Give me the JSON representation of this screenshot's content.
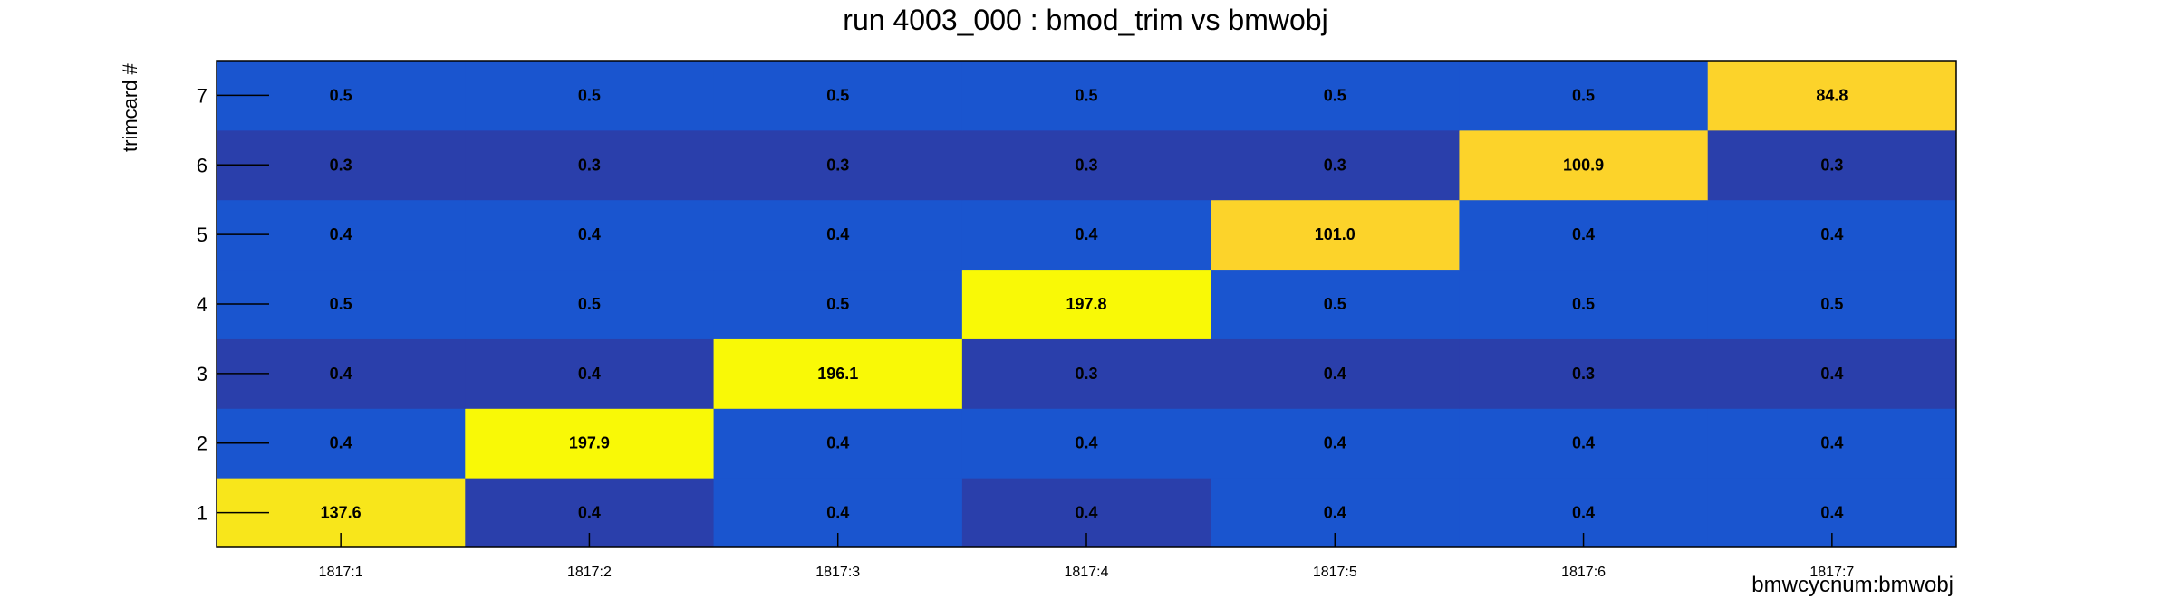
{
  "chart_data": {
    "type": "heatmap",
    "title": "run 4003_000 : bmod_trim vs bmwobj",
    "xlabel": "bmwcycnum:bmwobj",
    "ylabel": "trimcard #",
    "x_categories": [
      "1817:1",
      "1817:2",
      "1817:3",
      "1817:4",
      "1817:5",
      "1817:6",
      "1817:7"
    ],
    "y_categories": [
      "1",
      "2",
      "3",
      "4",
      "5",
      "6",
      "7"
    ],
    "values": [
      [
        137.6,
        0.4,
        0.4,
        0.4,
        0.4,
        0.4,
        0.4
      ],
      [
        0.4,
        197.9,
        0.4,
        0.4,
        0.4,
        0.4,
        0.4
      ],
      [
        0.4,
        0.4,
        196.1,
        0.3,
        0.4,
        0.3,
        0.4
      ],
      [
        0.5,
        0.5,
        0.5,
        197.8,
        0.5,
        0.5,
        0.5
      ],
      [
        0.4,
        0.4,
        0.4,
        0.4,
        101.0,
        0.4,
        0.4
      ],
      [
        0.3,
        0.3,
        0.3,
        0.3,
        0.3,
        100.9,
        0.3
      ],
      [
        0.5,
        0.5,
        0.5,
        0.5,
        0.5,
        0.5,
        84.8
      ]
    ],
    "value_labels": [
      [
        "137.6",
        "0.4",
        "0.4",
        "0.4",
        "0.4",
        "0.4",
        "0.4"
      ],
      [
        "0.4",
        "197.9",
        "0.4",
        "0.4",
        "0.4",
        "0.4",
        "0.4"
      ],
      [
        "0.4",
        "0.4",
        "196.1",
        "0.3",
        "0.4",
        "0.3",
        "0.4"
      ],
      [
        "0.5",
        "0.5",
        "0.5",
        "197.8",
        "0.5",
        "0.5",
        "0.5"
      ],
      [
        "0.4",
        "0.4",
        "0.4",
        "0.4",
        "101.0",
        "0.4",
        "0.4"
      ],
      [
        "0.3",
        "0.3",
        "0.3",
        "0.3",
        "0.3",
        "100.9",
        "0.3"
      ],
      [
        "0.5",
        "0.5",
        "0.5",
        "0.5",
        "0.5",
        "0.5",
        "84.8"
      ]
    ],
    "cell_colors": [
      [
        "#f8e61b",
        "#2a3fab",
        "#1a55cf",
        "#2a3fab",
        "#1a55cf",
        "#1a55cf",
        "#1a55cf"
      ],
      [
        "#1a55cf",
        "#f9f906",
        "#1a55cf",
        "#1a55cf",
        "#1a55cf",
        "#1a55cf",
        "#1a55cf"
      ],
      [
        "#2a3fab",
        "#2a3fab",
        "#f9f906",
        "#2a3fab",
        "#2a3fab",
        "#2a3fab",
        "#2a3fab"
      ],
      [
        "#1a55cf",
        "#1a55cf",
        "#1a55cf",
        "#f9f906",
        "#1a55cf",
        "#1a55cf",
        "#1a55cf"
      ],
      [
        "#1a55cf",
        "#1a55cf",
        "#1a55cf",
        "#1a55cf",
        "#fcd32a",
        "#1a55cf",
        "#1a55cf"
      ],
      [
        "#2a3fab",
        "#2a3fab",
        "#2a3fab",
        "#2a3fab",
        "#2a3fab",
        "#fcd32a",
        "#2a3fab"
      ],
      [
        "#1a55cf",
        "#1a55cf",
        "#1a55cf",
        "#1a55cf",
        "#1a55cf",
        "#1a55cf",
        "#fcd32a"
      ]
    ],
    "grid": false,
    "legend": "none"
  }
}
